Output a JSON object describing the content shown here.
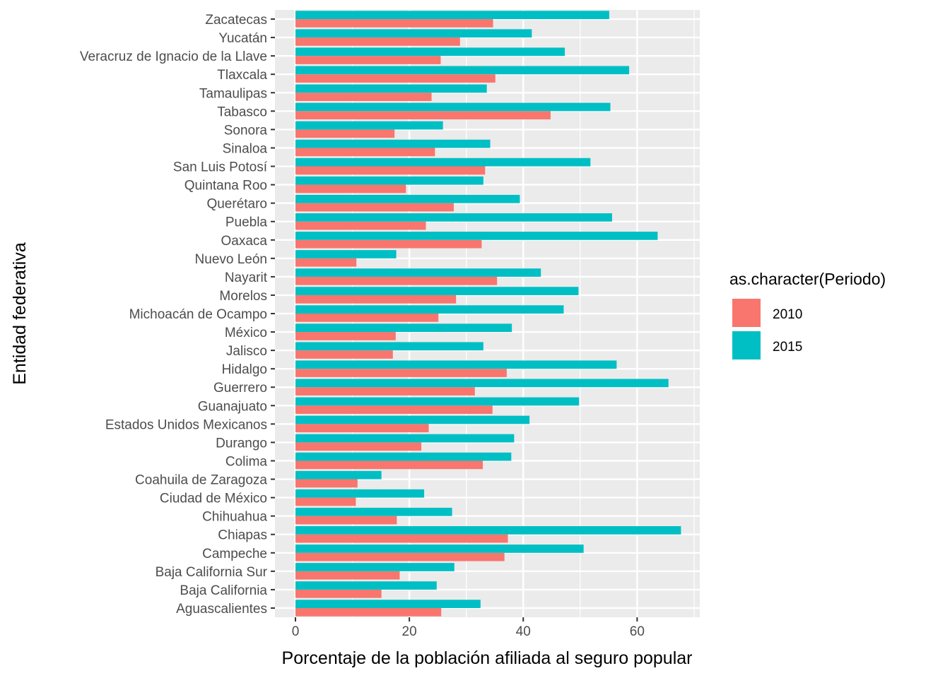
{
  "chart_data": {
    "type": "bar",
    "orientation": "horizontal",
    "xlabel": "Porcentaje de la población afiliada al seguro popular",
    "ylabel": "Entidad federativa",
    "xlim": [
      -3.6,
      71
    ],
    "xticks": [
      "0",
      "20",
      "40",
      "60"
    ],
    "xtick_values": [
      0,
      20,
      40,
      60
    ],
    "grid": true,
    "legend_position": "right",
    "legend_title": "as.character(Periodo)",
    "categories": [
      "Aguascalientes",
      "Baja California",
      "Baja California Sur",
      "Campeche",
      "Chiapas",
      "Chihuahua",
      "Ciudad de México",
      "Coahuila de Zaragoza",
      "Colima",
      "Durango",
      "Estados Unidos Mexicanos",
      "Guanajuato",
      "Guerrero",
      "Hidalgo",
      "Jalisco",
      "México",
      "Michoacán de Ocampo",
      "Morelos",
      "Nayarit",
      "Nuevo León",
      "Oaxaca",
      "Puebla",
      "Querétaro",
      "Quintana Roo",
      "San Luis Potosí",
      "Sinaloa",
      "Sonora",
      "Tabasco",
      "Tamaulipas",
      "Tlaxcala",
      "Veracruz de Ignacio de la Llave",
      "Yucatán",
      "Zacatecas"
    ],
    "series": [
      {
        "name": "2010",
        "color": "#F8766D",
        "values": [
          25.6,
          15.1,
          18.3,
          36.7,
          37.3,
          17.8,
          10.6,
          10.9,
          32.9,
          22.1,
          23.4,
          34.6,
          31.5,
          37.1,
          17.1,
          17.6,
          25.1,
          28.2,
          35.4,
          10.7,
          32.7,
          22.9,
          27.8,
          19.4,
          33.3,
          24.5,
          17.4,
          44.8,
          23.9,
          35.1,
          25.5,
          28.9,
          34.7
        ]
      },
      {
        "name": "2015",
        "color": "#00BFC4",
        "values": [
          32.5,
          24.8,
          27.9,
          50.6,
          67.7,
          27.5,
          22.6,
          15.1,
          37.9,
          38.4,
          41.1,
          49.8,
          65.5,
          56.4,
          33.0,
          38.0,
          47.1,
          49.7,
          43.1,
          17.7,
          63.6,
          55.6,
          39.4,
          33.0,
          51.8,
          34.2,
          25.9,
          55.3,
          33.6,
          58.6,
          47.3,
          41.5,
          55.1
        ]
      }
    ]
  }
}
